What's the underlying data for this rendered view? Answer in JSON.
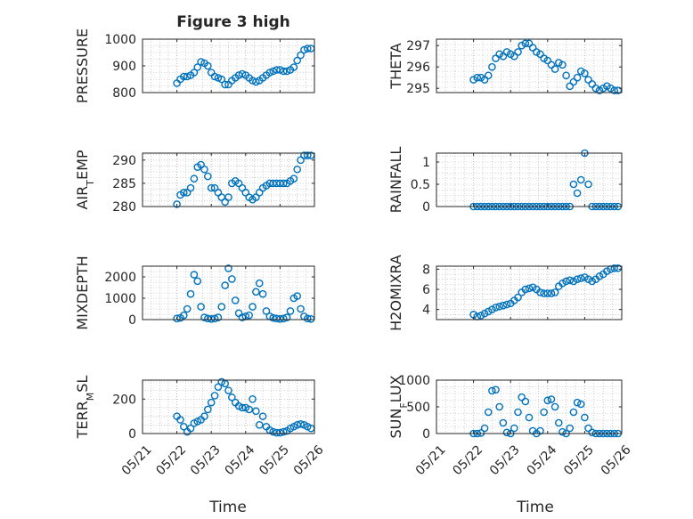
{
  "figure_title": "Figure 3 high",
  "x_common_label": "Time",
  "colors": {
    "marker": "#0072BD",
    "axis": "#262626",
    "grid": "#b0b0b0"
  },
  "date_tick_labels": [
    "05/21",
    "05/22",
    "05/23",
    "05/24",
    "05/25",
    "05/26"
  ],
  "chart_data": [
    {
      "type": "scatter",
      "title": "Figure 3 high",
      "ylabel": "PRESSURE",
      "xlabel": "",
      "xlim": [
        "05/21",
        "05/26"
      ],
      "ylim": [
        800,
        1000
      ],
      "yticks": [
        800,
        900,
        1000
      ],
      "grid": true,
      "x": [
        "05/22",
        "05/22",
        "05/22",
        "05/22",
        "05/22",
        "05/22",
        "05/22",
        "05/22",
        "05/22",
        "05/22",
        "05/23",
        "05/23",
        "05/23",
        "05/23",
        "05/23",
        "05/23",
        "05/23",
        "05/23",
        "05/23",
        "05/23",
        "05/24",
        "05/24",
        "05/24",
        "05/24",
        "05/24",
        "05/24",
        "05/24",
        "05/24",
        "05/24",
        "05/24",
        "05/25",
        "05/25",
        "05/25",
        "05/25",
        "05/25",
        "05/25",
        "05/25",
        "05/25",
        "05/25",
        "05/25"
      ],
      "xfrac": [
        0.0,
        0.1,
        0.2,
        0.3,
        0.4,
        0.5,
        0.6,
        0.7,
        0.8,
        0.9,
        0.0,
        0.1,
        0.2,
        0.3,
        0.4,
        0.5,
        0.6,
        0.7,
        0.8,
        0.9,
        0.0,
        0.1,
        0.2,
        0.3,
        0.4,
        0.5,
        0.6,
        0.7,
        0.8,
        0.9,
        0.0,
        0.1,
        0.2,
        0.3,
        0.4,
        0.5,
        0.6,
        0.7,
        0.8,
        0.9
      ],
      "y": [
        835,
        850,
        860,
        860,
        865,
        875,
        895,
        915,
        910,
        900,
        875,
        860,
        855,
        850,
        830,
        830,
        845,
        855,
        865,
        870,
        865,
        855,
        845,
        840,
        845,
        855,
        865,
        875,
        880,
        885,
        885,
        880,
        880,
        885,
        895,
        920,
        940,
        960,
        965,
        965
      ]
    },
    {
      "type": "scatter",
      "ylabel": "THETA",
      "xlabel": "",
      "xlim": [
        "05/21",
        "05/26"
      ],
      "ylim": [
        294.8,
        297.3
      ],
      "yticks": [
        295,
        296,
        297
      ],
      "grid": true,
      "x": [
        "05/22",
        "05/22",
        "05/22",
        "05/22",
        "05/22",
        "05/22",
        "05/22",
        "05/22",
        "05/22",
        "05/22",
        "05/23",
        "05/23",
        "05/23",
        "05/23",
        "05/23",
        "05/23",
        "05/23",
        "05/23",
        "05/23",
        "05/23",
        "05/24",
        "05/24",
        "05/24",
        "05/24",
        "05/24",
        "05/24",
        "05/24",
        "05/24",
        "05/24",
        "05/24",
        "05/25",
        "05/25",
        "05/25",
        "05/25",
        "05/25",
        "05/25",
        "05/25",
        "05/25",
        "05/25",
        "05/25"
      ],
      "xfrac": [
        0.0,
        0.1,
        0.2,
        0.3,
        0.4,
        0.5,
        0.6,
        0.7,
        0.8,
        0.9,
        0.0,
        0.1,
        0.2,
        0.3,
        0.4,
        0.5,
        0.6,
        0.7,
        0.8,
        0.9,
        0.0,
        0.1,
        0.2,
        0.3,
        0.4,
        0.5,
        0.6,
        0.7,
        0.8,
        0.9,
        0.0,
        0.1,
        0.2,
        0.3,
        0.4,
        0.5,
        0.6,
        0.7,
        0.8,
        0.9
      ],
      "y": [
        295.4,
        295.5,
        295.5,
        295.4,
        295.6,
        296.0,
        296.4,
        296.6,
        296.5,
        296.7,
        296.6,
        296.5,
        296.7,
        297.0,
        297.1,
        297.1,
        296.9,
        296.7,
        296.6,
        296.4,
        296.3,
        296.1,
        295.9,
        296.2,
        296.1,
        295.6,
        295.1,
        295.3,
        295.5,
        295.8,
        295.7,
        295.4,
        295.2,
        295.0,
        294.9,
        295.0,
        295.1,
        295.0,
        294.9,
        294.9
      ]
    },
    {
      "type": "scatter",
      "ylabel": "AIR_TEMP",
      "xlabel": "",
      "xlim": [
        "05/21",
        "05/26"
      ],
      "ylim": [
        280,
        291.5
      ],
      "yticks": [
        280,
        285,
        290
      ],
      "grid": true,
      "x": [
        "05/22",
        "05/22",
        "05/22",
        "05/22",
        "05/22",
        "05/22",
        "05/22",
        "05/22",
        "05/22",
        "05/22",
        "05/23",
        "05/23",
        "05/23",
        "05/23",
        "05/23",
        "05/23",
        "05/23",
        "05/23",
        "05/23",
        "05/23",
        "05/24",
        "05/24",
        "05/24",
        "05/24",
        "05/24",
        "05/24",
        "05/24",
        "05/24",
        "05/24",
        "05/24",
        "05/25",
        "05/25",
        "05/25",
        "05/25",
        "05/25",
        "05/25",
        "05/25",
        "05/25",
        "05/25",
        "05/25"
      ],
      "xfrac": [
        0.0,
        0.1,
        0.2,
        0.3,
        0.4,
        0.5,
        0.6,
        0.7,
        0.8,
        0.9,
        0.0,
        0.1,
        0.2,
        0.3,
        0.4,
        0.5,
        0.6,
        0.7,
        0.8,
        0.9,
        0.0,
        0.1,
        0.2,
        0.3,
        0.4,
        0.5,
        0.6,
        0.7,
        0.8,
        0.9,
        0.0,
        0.1,
        0.2,
        0.3,
        0.4,
        0.5,
        0.6,
        0.7,
        0.8,
        0.9
      ],
      "y": [
        280.5,
        282.5,
        283.0,
        283.0,
        284.0,
        286.0,
        288.5,
        289.0,
        288.0,
        286.5,
        284.0,
        284.0,
        283.0,
        282.0,
        281.0,
        282.0,
        285.0,
        285.5,
        285.0,
        284.0,
        283.0,
        282.0,
        281.5,
        282.0,
        283.0,
        284.0,
        284.5,
        285.0,
        285.0,
        285.0,
        285.0,
        285.0,
        285.0,
        285.5,
        286.0,
        288.0,
        290.0,
        291.0,
        291.0,
        291.0
      ]
    },
    {
      "type": "scatter",
      "ylabel": "RAINFALL",
      "xlabel": "",
      "xlim": [
        "05/21",
        "05/26"
      ],
      "ylim": [
        0,
        1.2
      ],
      "yticks": [
        0,
        0.5,
        1
      ],
      "grid": true,
      "x": [
        "05/22",
        "05/22",
        "05/22",
        "05/22",
        "05/22",
        "05/22",
        "05/22",
        "05/22",
        "05/22",
        "05/22",
        "05/23",
        "05/23",
        "05/23",
        "05/23",
        "05/23",
        "05/23",
        "05/23",
        "05/23",
        "05/23",
        "05/23",
        "05/24",
        "05/24",
        "05/24",
        "05/24",
        "05/24",
        "05/24",
        "05/24",
        "05/24",
        "05/24",
        "05/24",
        "05/25",
        "05/25",
        "05/25",
        "05/25",
        "05/25",
        "05/25",
        "05/25",
        "05/25",
        "05/25",
        "05/25"
      ],
      "xfrac": [
        0.0,
        0.1,
        0.2,
        0.3,
        0.4,
        0.5,
        0.6,
        0.7,
        0.8,
        0.9,
        0.0,
        0.1,
        0.2,
        0.3,
        0.4,
        0.5,
        0.6,
        0.7,
        0.8,
        0.9,
        0.0,
        0.1,
        0.2,
        0.3,
        0.4,
        0.5,
        0.6,
        0.7,
        0.8,
        0.9,
        0.0,
        0.1,
        0.2,
        0.3,
        0.4,
        0.5,
        0.6,
        0.7,
        0.8,
        0.9
      ],
      "y": [
        0,
        0,
        0,
        0,
        0,
        0,
        0,
        0,
        0,
        0,
        0,
        0,
        0,
        0,
        0,
        0,
        0,
        0,
        0,
        0,
        0,
        0,
        0,
        0,
        0,
        0,
        0,
        0.5,
        0.3,
        0.6,
        1.2,
        0.5,
        0,
        0,
        0,
        0,
        0,
        0,
        0,
        0
      ]
    },
    {
      "type": "scatter",
      "ylabel": "MIXDEPTH",
      "xlabel": "",
      "xlim": [
        "05/21",
        "05/26"
      ],
      "ylim": [
        0,
        2500
      ],
      "yticks": [
        0,
        1000,
        2000
      ],
      "grid": true,
      "x": [
        "05/22",
        "05/22",
        "05/22",
        "05/22",
        "05/22",
        "05/22",
        "05/22",
        "05/22",
        "05/22",
        "05/22",
        "05/23",
        "05/23",
        "05/23",
        "05/23",
        "05/23",
        "05/23",
        "05/23",
        "05/23",
        "05/23",
        "05/23",
        "05/24",
        "05/24",
        "05/24",
        "05/24",
        "05/24",
        "05/24",
        "05/24",
        "05/24",
        "05/24",
        "05/24",
        "05/25",
        "05/25",
        "05/25",
        "05/25",
        "05/25",
        "05/25",
        "05/25",
        "05/25",
        "05/25",
        "05/25"
      ],
      "xfrac": [
        0.0,
        0.1,
        0.2,
        0.3,
        0.4,
        0.5,
        0.6,
        0.7,
        0.8,
        0.9,
        0.0,
        0.1,
        0.2,
        0.3,
        0.4,
        0.5,
        0.6,
        0.7,
        0.8,
        0.9,
        0.0,
        0.1,
        0.2,
        0.3,
        0.4,
        0.5,
        0.6,
        0.7,
        0.8,
        0.9,
        0.0,
        0.1,
        0.2,
        0.3,
        0.4,
        0.5,
        0.6,
        0.7,
        0.8,
        0.9
      ],
      "y": [
        50,
        80,
        200,
        500,
        1200,
        2100,
        1800,
        600,
        100,
        50,
        30,
        50,
        100,
        600,
        1600,
        2400,
        1900,
        900,
        300,
        100,
        150,
        200,
        600,
        1300,
        1700,
        1200,
        400,
        150,
        80,
        50,
        30,
        50,
        100,
        400,
        1000,
        1100,
        500,
        150,
        50,
        30
      ]
    },
    {
      "type": "scatter",
      "ylabel": "H2OMIXRA",
      "xlabel": "",
      "xlim": [
        "05/21",
        "05/26"
      ],
      "ylim": [
        3,
        8.3
      ],
      "yticks": [
        4,
        6,
        8
      ],
      "grid": true,
      "x": [
        "05/22",
        "05/22",
        "05/22",
        "05/22",
        "05/22",
        "05/22",
        "05/22",
        "05/22",
        "05/22",
        "05/22",
        "05/23",
        "05/23",
        "05/23",
        "05/23",
        "05/23",
        "05/23",
        "05/23",
        "05/23",
        "05/23",
        "05/23",
        "05/24",
        "05/24",
        "05/24",
        "05/24",
        "05/24",
        "05/24",
        "05/24",
        "05/24",
        "05/24",
        "05/24",
        "05/25",
        "05/25",
        "05/25",
        "05/25",
        "05/25",
        "05/25",
        "05/25",
        "05/25",
        "05/25",
        "05/25"
      ],
      "xfrac": [
        0.0,
        0.1,
        0.2,
        0.3,
        0.4,
        0.5,
        0.6,
        0.7,
        0.8,
        0.9,
        0.0,
        0.1,
        0.2,
        0.3,
        0.4,
        0.5,
        0.6,
        0.7,
        0.8,
        0.9,
        0.0,
        0.1,
        0.2,
        0.3,
        0.4,
        0.5,
        0.6,
        0.7,
        0.8,
        0.9,
        0.0,
        0.1,
        0.2,
        0.3,
        0.4,
        0.5,
        0.6,
        0.7,
        0.8,
        0.9
      ],
      "y": [
        3.5,
        3.3,
        3.4,
        3.6,
        3.8,
        4.0,
        4.2,
        4.3,
        4.4,
        4.5,
        4.6,
        4.9,
        5.2,
        5.7,
        6.0,
        6.1,
        6.2,
        6.0,
        5.7,
        5.6,
        5.6,
        5.6,
        5.7,
        6.3,
        6.6,
        6.8,
        6.9,
        6.8,
        7.0,
        7.1,
        7.2,
        7.0,
        6.8,
        7.0,
        7.3,
        7.5,
        7.8,
        8.0,
        8.1,
        8.1
      ]
    },
    {
      "type": "scatter",
      "ylabel": "TERR_MSL",
      "xlabel": "",
      "xlim": [
        "05/21",
        "05/26"
      ],
      "ylim": [
        0,
        310
      ],
      "yticks": [
        0,
        200
      ],
      "grid": true,
      "xticklabels": [
        "05/21",
        "05/22",
        "05/23",
        "05/24",
        "05/25",
        "05/26"
      ],
      "x": [
        "05/22",
        "05/22",
        "05/22",
        "05/22",
        "05/22",
        "05/22",
        "05/22",
        "05/22",
        "05/22",
        "05/22",
        "05/23",
        "05/23",
        "05/23",
        "05/23",
        "05/23",
        "05/23",
        "05/23",
        "05/23",
        "05/23",
        "05/23",
        "05/24",
        "05/24",
        "05/24",
        "05/24",
        "05/24",
        "05/24",
        "05/24",
        "05/24",
        "05/24",
        "05/24",
        "05/25",
        "05/25",
        "05/25",
        "05/25",
        "05/25",
        "05/25",
        "05/25",
        "05/25",
        "05/25",
        "05/25"
      ],
      "xfrac": [
        0.0,
        0.1,
        0.2,
        0.3,
        0.4,
        0.5,
        0.6,
        0.7,
        0.8,
        0.9,
        0.0,
        0.1,
        0.2,
        0.3,
        0.4,
        0.5,
        0.6,
        0.7,
        0.8,
        0.9,
        0.0,
        0.1,
        0.2,
        0.3,
        0.4,
        0.5,
        0.6,
        0.7,
        0.8,
        0.9,
        0.0,
        0.1,
        0.2,
        0.3,
        0.4,
        0.5,
        0.6,
        0.7,
        0.8,
        0.9
      ],
      "y": [
        100,
        80,
        40,
        10,
        30,
        60,
        70,
        80,
        100,
        140,
        180,
        220,
        270,
        300,
        290,
        250,
        210,
        180,
        160,
        150,
        150,
        140,
        200,
        130,
        50,
        100,
        40,
        20,
        10,
        5,
        5,
        10,
        15,
        30,
        40,
        50,
        55,
        50,
        40,
        30
      ]
    },
    {
      "type": "scatter",
      "ylabel": "SUN_FLUX",
      "xlabel": "",
      "xlim": [
        "05/21",
        "05/26"
      ],
      "ylim": [
        0,
        1000
      ],
      "yticks": [
        0,
        500,
        1000
      ],
      "grid": true,
      "xticklabels": [
        "05/21",
        "05/22",
        "05/23",
        "05/24",
        "05/25",
        "05/26"
      ],
      "x": [
        "05/22",
        "05/22",
        "05/22",
        "05/22",
        "05/22",
        "05/22",
        "05/22",
        "05/22",
        "05/22",
        "05/22",
        "05/23",
        "05/23",
        "05/23",
        "05/23",
        "05/23",
        "05/23",
        "05/23",
        "05/23",
        "05/23",
        "05/23",
        "05/24",
        "05/24",
        "05/24",
        "05/24",
        "05/24",
        "05/24",
        "05/24",
        "05/24",
        "05/24",
        "05/24",
        "05/25",
        "05/25",
        "05/25",
        "05/25",
        "05/25",
        "05/25",
        "05/25",
        "05/25",
        "05/25",
        "05/25"
      ],
      "xfrac": [
        0.0,
        0.1,
        0.2,
        0.3,
        0.4,
        0.5,
        0.6,
        0.7,
        0.8,
        0.9,
        0.0,
        0.1,
        0.2,
        0.3,
        0.4,
        0.5,
        0.6,
        0.7,
        0.8,
        0.9,
        0.0,
        0.1,
        0.2,
        0.3,
        0.4,
        0.5,
        0.6,
        0.7,
        0.8,
        0.9,
        0.0,
        0.1,
        0.2,
        0.3,
        0.4,
        0.5,
        0.6,
        0.7,
        0.8,
        0.9
      ],
      "y": [
        0,
        0,
        10,
        100,
        400,
        800,
        820,
        500,
        200,
        20,
        0,
        100,
        400,
        680,
        600,
        300,
        50,
        0,
        50,
        400,
        620,
        640,
        500,
        200,
        30,
        0,
        100,
        400,
        580,
        550,
        300,
        100,
        20,
        0,
        0,
        0,
        0,
        0,
        0,
        0
      ]
    }
  ]
}
